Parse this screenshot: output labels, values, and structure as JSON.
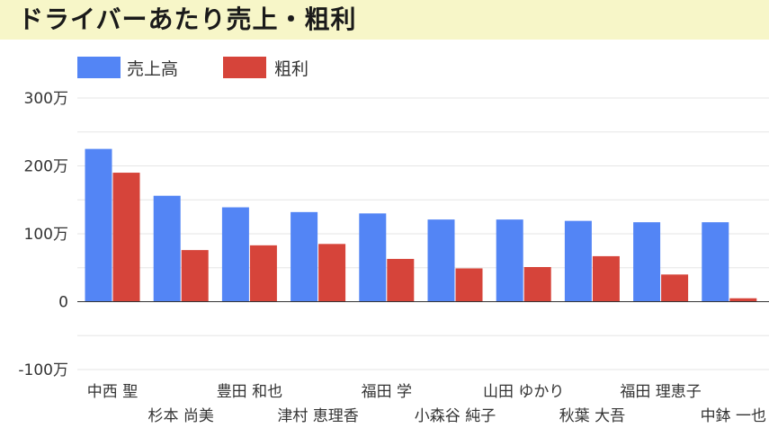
{
  "title": "ドライバーあたり売上・粗利",
  "colors": {
    "sales": "#5385f5",
    "profit": "#d6443a",
    "title_bg": "#f7f6c8"
  },
  "chart_data": {
    "type": "bar",
    "categories": [
      "中西 聖",
      "杉本 尚美",
      "豊田 和也",
      "津村 恵理香",
      "福田 学",
      "小森谷 純子",
      "山田 ゆかり",
      "秋葉 大吾",
      "福田 理恵子",
      "中鉢 一也"
    ],
    "series": [
      {
        "name": "売上高",
        "values": [
          2250000,
          1560000,
          1390000,
          1320000,
          1300000,
          1210000,
          1210000,
          1190000,
          1170000,
          1170000
        ]
      },
      {
        "name": "粗利",
        "values": [
          1900000,
          760000,
          830000,
          850000,
          630000,
          490000,
          510000,
          670000,
          400000,
          50000
        ]
      }
    ],
    "yticks": [
      -1000000,
      0,
      1000000,
      2000000,
      3000000
    ],
    "ytick_labels": [
      "-100万",
      "0",
      "100万",
      "200万",
      "300万"
    ],
    "ylim": [
      -1000000,
      3000000
    ],
    "legend": "top-left",
    "grid": true
  }
}
